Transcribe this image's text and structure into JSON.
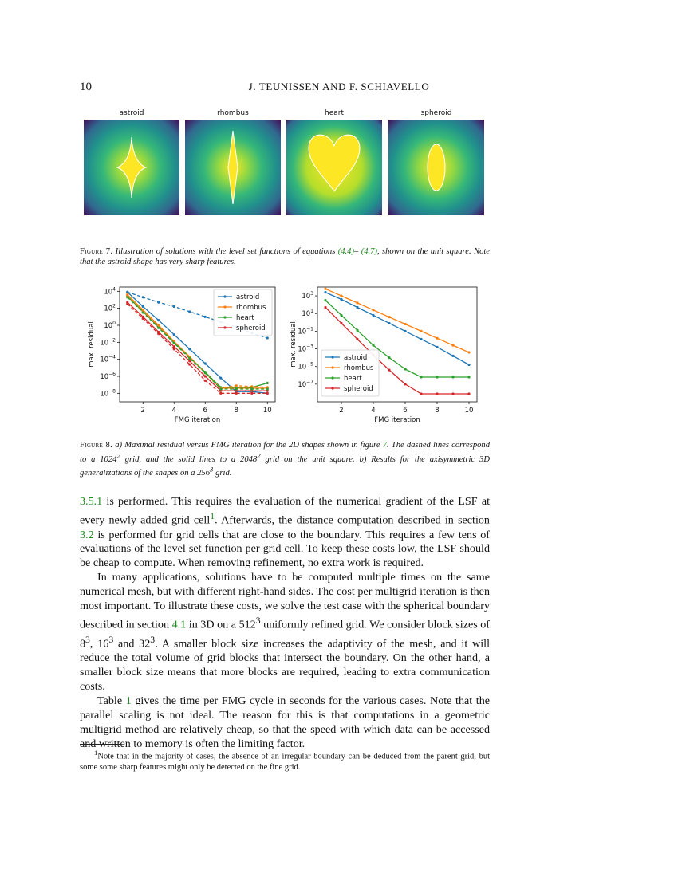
{
  "header": {
    "page_number": "10",
    "running_head": "J. TEUNISSEN AND F. SCHIAVELLO"
  },
  "figure7": {
    "panels": [
      {
        "title": "astroid",
        "shape": "astroid"
      },
      {
        "title": "rhombus",
        "shape": "rhombus"
      },
      {
        "title": "heart",
        "shape": "heart"
      },
      {
        "title": "spheroid",
        "shape": "spheroid"
      }
    ],
    "colors": {
      "dark": "#440154",
      "mid": "#21918c",
      "light": "#fde725"
    },
    "caption_label": "Figure 7.",
    "caption_a": "Illustration of solutions with the level set functions of equations ",
    "caption_ref1": "(4.4)",
    "caption_b": "– ",
    "caption_ref2": "(4.7)",
    "caption_c": ", shown on the unit square. Note that the astroid shape has very sharp features."
  },
  "chart_data": [
    {
      "type": "line",
      "panel": "a",
      "xlabel": "FMG iteration",
      "ylabel": "max. residual",
      "y_scale": "log",
      "xlim": [
        0.5,
        10.5
      ],
      "ylim_log10": [
        -9,
        4.5
      ],
      "xticks": [
        2,
        4,
        6,
        8,
        10
      ],
      "yticks": [
        "10^4",
        "10^2",
        "10^0",
        "10^-2",
        "10^-4",
        "10^-6",
        "10^-8"
      ],
      "legend_position": "top-right",
      "x": [
        1,
        2,
        3,
        4,
        5,
        6,
        7,
        8,
        9,
        10
      ],
      "series": [
        {
          "name": "astroid",
          "color": "#1f77b4",
          "line": "solid",
          "log10_values": [
            3.9,
            2.2,
            0.6,
            -1.1,
            -2.8,
            -4.5,
            -6.2,
            -7.8,
            -7.8,
            -8.0
          ]
        },
        {
          "name": "rhombus",
          "color": "#ff7f0e",
          "line": "solid",
          "log10_values": [
            3.6,
            1.8,
            0.0,
            -1.9,
            -3.7,
            -5.6,
            -7.4,
            -7.4,
            -7.4,
            -7.4
          ]
        },
        {
          "name": "heart",
          "color": "#2ca02c",
          "line": "solid",
          "log10_values": [
            3.4,
            1.6,
            -0.2,
            -2.0,
            -3.8,
            -5.5,
            -7.3,
            -7.3,
            -7.3,
            -6.8
          ]
        },
        {
          "name": "spheroid",
          "color": "#d62728",
          "line": "solid",
          "log10_values": [
            2.7,
            1.0,
            -0.8,
            -2.5,
            -4.2,
            -6.0,
            -7.7,
            -7.7,
            -7.7,
            -7.7
          ]
        },
        {
          "color": "#1f77b4",
          "line": "dashed",
          "log10_values": [
            3.9,
            3.3,
            2.7,
            2.2,
            1.6,
            1.0,
            0.4,
            -0.2,
            -0.9,
            -1.5
          ]
        },
        {
          "color": "#ff7f0e",
          "line": "dashed",
          "log10_values": [
            3.5,
            1.7,
            -0.1,
            -1.9,
            -3.8,
            -5.6,
            -7.4,
            -7.1,
            -7.2,
            -7.3
          ]
        },
        {
          "color": "#2ca02c",
          "line": "dashed",
          "log10_values": [
            3.3,
            1.5,
            -0.3,
            -2.1,
            -3.9,
            -5.6,
            -7.5,
            -7.5,
            -7.5,
            -7.5
          ]
        },
        {
          "color": "#d62728",
          "line": "dashed",
          "log10_values": [
            2.5,
            0.8,
            -1.0,
            -2.8,
            -4.6,
            -6.5,
            -8.0,
            -8.0,
            -8.0,
            -8.0
          ]
        }
      ]
    },
    {
      "type": "line",
      "panel": "b",
      "xlabel": "FMG iteration",
      "ylabel": "max. residual",
      "y_scale": "log",
      "xlim": [
        0.5,
        10.5
      ],
      "ylim_log10": [
        -9,
        4
      ],
      "xticks": [
        2,
        4,
        6,
        8,
        10
      ],
      "yticks": [
        "10^3",
        "10^1",
        "10^-1",
        "10^-3",
        "10^-5",
        "10^-7"
      ],
      "legend_position": "bottom-left",
      "x": [
        1,
        2,
        3,
        4,
        5,
        6,
        7,
        8,
        9,
        10
      ],
      "series": [
        {
          "name": "astroid",
          "color": "#1f77b4",
          "line": "solid",
          "log10_values": [
            3.4,
            2.6,
            1.7,
            0.8,
            -0.1,
            -1.0,
            -1.9,
            -2.8,
            -3.8,
            -4.8
          ]
        },
        {
          "name": "rhombus",
          "color": "#ff7f0e",
          "line": "solid",
          "log10_values": [
            3.8,
            3.0,
            2.2,
            1.4,
            0.6,
            -0.2,
            -1.0,
            -1.8,
            -2.6,
            -3.4
          ]
        },
        {
          "name": "heart",
          "color": "#2ca02c",
          "line": "solid",
          "log10_values": [
            2.5,
            0.8,
            -0.9,
            -2.6,
            -4.0,
            -5.3,
            -6.2,
            -6.2,
            -6.2,
            -6.2
          ]
        },
        {
          "name": "spheroid",
          "color": "#d62728",
          "line": "solid",
          "log10_values": [
            1.7,
            -0.1,
            -1.9,
            -3.7,
            -5.4,
            -7.0,
            -8.1,
            -8.1,
            -8.1,
            -8.1
          ]
        }
      ]
    }
  ],
  "figure8": {
    "caption_label": "Figure 8.",
    "caption_a": "a) Maximal residual versus FMG iteration for the 2D shapes shown in figure ",
    "caption_ref": "7",
    "caption_b": ". The dashed lines correspond to a 1024",
    "sup1": "2",
    "caption_c": " grid, and the solid lines to a 2048",
    "sup2": "2",
    "caption_d": " grid on the unit square. b) Results for the axisymmetric 3D generalizations of the shapes on a 256",
    "sup3": "3",
    "caption_e": " grid."
  },
  "body": {
    "p1": {
      "ref1": "3.5.1",
      "t1": " is performed. This requires the evaluation of the numerical gradient of the LSF at every newly added grid cell",
      "fnmark": "1",
      "t2": ". Afterwards, the distance computation described in section ",
      "ref2": "3.2",
      "t3": " is performed for grid cells that are close to the boundary. This requires a few tens of evaluations of the level set function per grid cell. To keep these costs low, the LSF should be cheap to compute. When removing refinement, no extra work is required."
    },
    "p2": {
      "t1": "In many applications, solutions have to be computed multiple times on the same numerical mesh, but with different right-hand sides. The cost per multigrid iteration is then most important. To illustrate these costs, we solve the test case with the spherical boundary described in section ",
      "ref1": "4.1",
      "t2": " in 3D on a 512",
      "s1": "3",
      "t3": " uniformly refined grid. We consider block sizes of 8",
      "s2": "3",
      "t4": ", 16",
      "s3": "3",
      "t5": " and 32",
      "s4": "3",
      "t6": ". A smaller block size increases the adaptivity of the mesh, and it will reduce the total volume of grid blocks that intersect the boundary. On the other hand, a smaller block size means that more blocks are required, leading to extra communication costs."
    },
    "p3": {
      "t1": "Table ",
      "ref1": "1",
      "t2": " gives the time per FMG cycle in seconds for the various cases. Note that the parallel scaling is not ideal. The reason for this is that computations in a geometric multigrid method are relatively cheap, so that the speed with which data can be accessed and written to memory is often the limiting factor."
    }
  },
  "footnote": {
    "mark": "1",
    "text": "Note that in the majority of cases, the absence of an irregular boundary can be deduced from the parent grid, but some some sharp features might only be detected on the fine grid."
  }
}
